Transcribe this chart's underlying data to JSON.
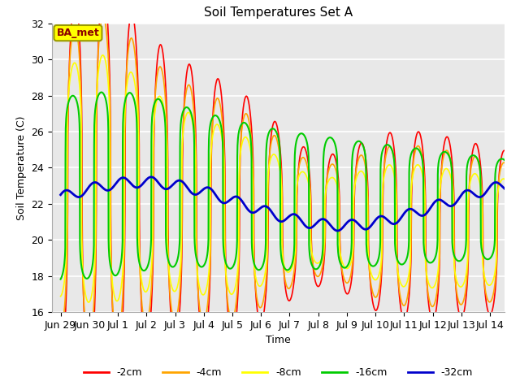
{
  "title": "Soil Temperatures Set A",
  "xlabel": "Time",
  "ylabel": "Soil Temperature (C)",
  "ylim": [
    16,
    32
  ],
  "xlim": [
    -0.3,
    15.5
  ],
  "bg_color": "#e8e8e8",
  "annotation_text": "BA_met",
  "annotation_box_color": "#ffff00",
  "annotation_text_color": "#8b0000",
  "series_colors": {
    "-2cm": "#ff0000",
    "-4cm": "#ffa500",
    "-8cm": "#ffff00",
    "-16cm": "#00cc00",
    "-32cm": "#0000cc"
  },
  "xtick_labels": [
    "Jun 29",
    "Jun 30",
    "Jul 1",
    "Jul 2",
    "Jul 3",
    "Jul 4",
    "Jul 5",
    "Jul 6",
    "Jul 7",
    "Jul 8",
    "Jul 9",
    "Jul 10",
    "Jul 11",
    "Jul 12",
    "Jul 13",
    "Jul 14"
  ],
  "xtick_positions": [
    0,
    1,
    2,
    3,
    4,
    5,
    6,
    7,
    8,
    9,
    10,
    11,
    12,
    13,
    14,
    15
  ]
}
